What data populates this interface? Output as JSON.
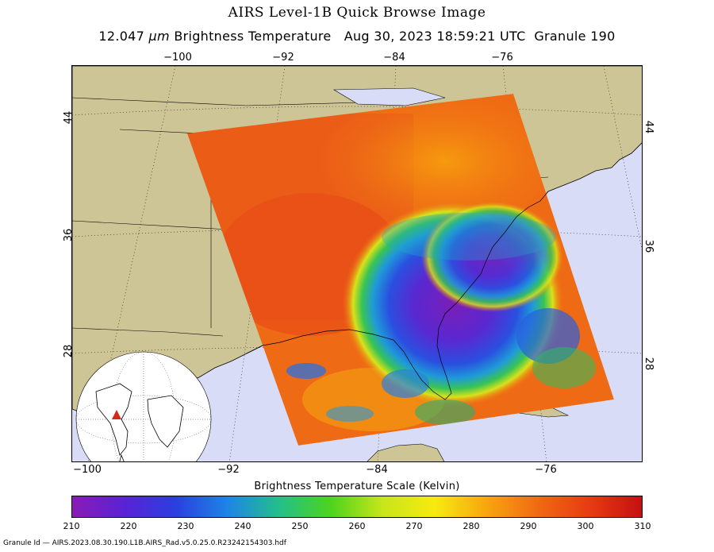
{
  "title": "AIRS Level-1B Quick Browse Image",
  "subtitle": {
    "wavelength": "12.047",
    "unit": "µm",
    "measure": "Brightness Temperature",
    "datetime": "Aug 30, 2023 18:59:21 UTC",
    "granule": "Granule 190"
  },
  "axes": {
    "top_ticks": [
      "−100",
      "−92",
      "−84",
      "−76"
    ],
    "bottom_ticks": [
      "−100",
      "−92",
      "−84",
      "−76"
    ],
    "left_ticks": [
      "44",
      "36",
      "28"
    ],
    "right_ticks": [
      "44",
      "36",
      "28"
    ]
  },
  "colorbar": {
    "title": "Brightness Temperature Scale (Kelvin)",
    "labels": [
      "210",
      "220",
      "230",
      "240",
      "250",
      "260",
      "270",
      "280",
      "290",
      "300",
      "310"
    ],
    "min": 210,
    "max": 310,
    "stops": [
      "#8a1bb5",
      "#5a22d6",
      "#2a3fe0",
      "#1f84e6",
      "#22c08a",
      "#4ed41c",
      "#c8e61a",
      "#f7ea10",
      "#f7a60e",
      "#f06a12",
      "#e83a12",
      "#c41010"
    ]
  },
  "colors": {
    "land": "#cdc596",
    "ocean": "#d9dcf7",
    "swath_warm": "#f06a12",
    "swath_cold": "#7a2ac8"
  },
  "footer": "Granule Id — AIRS.2023.08.30.190.L1B.AIRS_Rad.v5.0.25.0.R23242154303.hdf"
}
